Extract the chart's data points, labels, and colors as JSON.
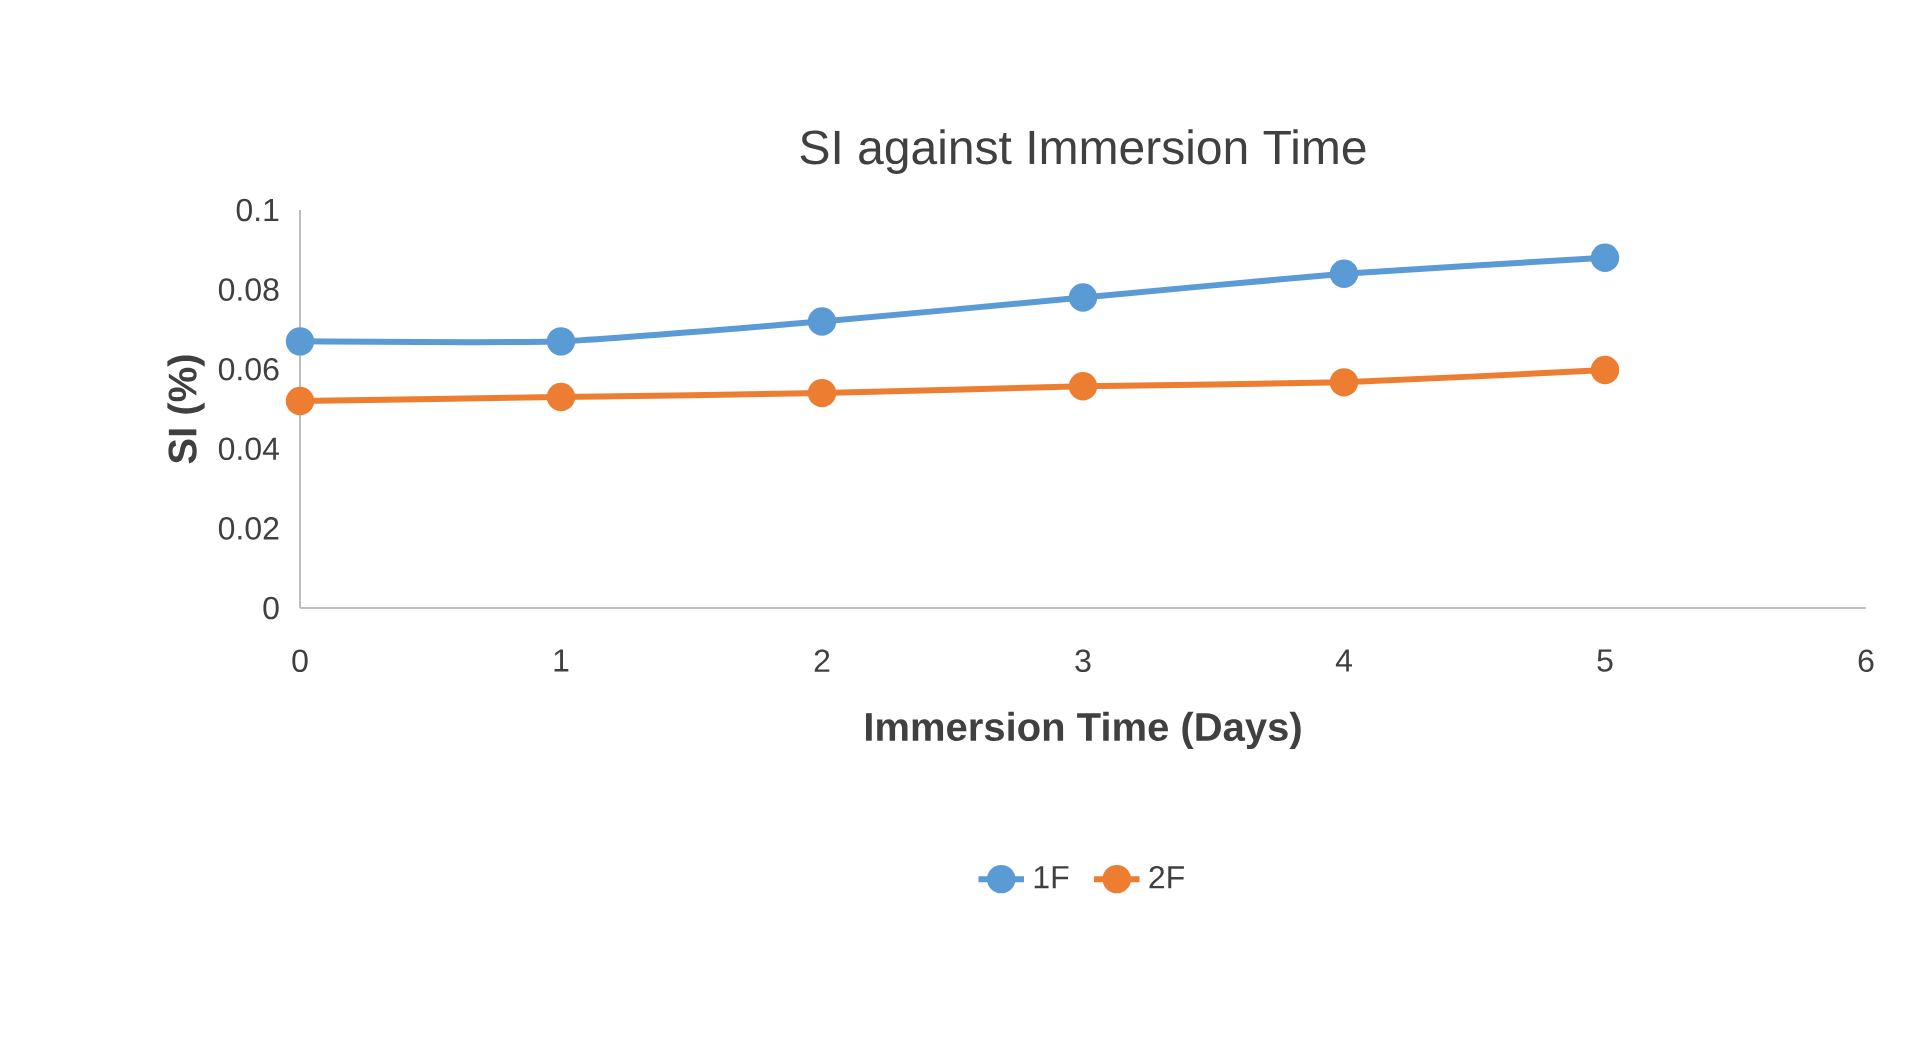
{
  "chart_data": {
    "type": "line",
    "title": "SI against Immersion Time",
    "xlabel": "Immersion Time (Days)",
    "ylabel": "SI (%)",
    "x": [
      0,
      1,
      2,
      3,
      4,
      5
    ],
    "series": [
      {
        "name": "1F",
        "color": "#5b9bd5",
        "values": [
          0.067,
          0.067,
          0.072,
          0.078,
          0.084,
          0.088
        ]
      },
      {
        "name": "2F",
        "color": "#ed7d31",
        "values": [
          0.052,
          0.053,
          0.054,
          0.0557,
          0.0567,
          0.0598
        ]
      }
    ],
    "xlim": [
      0,
      6
    ],
    "ylim": [
      0,
      0.1
    ],
    "xticks": [
      0,
      1,
      2,
      3,
      4,
      5,
      6
    ],
    "yticks": [
      0,
      0.02,
      0.04,
      0.06,
      0.08,
      0.1
    ],
    "legend": "bottom",
    "marker": "circle",
    "line_style": "solid"
  }
}
